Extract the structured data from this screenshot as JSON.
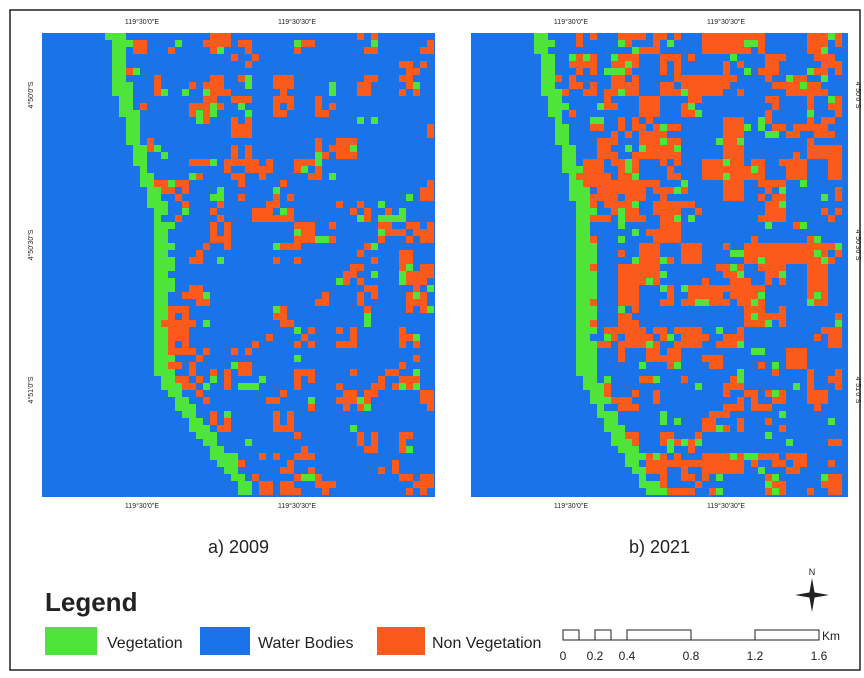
{
  "panels": [
    {
      "caption": "a) 2009",
      "top_labels": [
        "119°30'0\"E",
        "119°30'30\"E"
      ],
      "bottom_labels": [
        "119°30'0\"E",
        "119°30'30\"E"
      ],
      "side_labels": [
        "4°50'0\"S",
        "4°50'30\"S",
        "4°51'0\"S"
      ]
    },
    {
      "caption": "b) 2021",
      "top_labels": [
        "119°30'0\"E",
        "119°30'30\"E"
      ],
      "bottom_labels": [
        "119°30'0\"E",
        "119°30'30\"E"
      ],
      "side_labels": [
        "4°50'0\"S",
        "4°50'30\"S",
        "4°51'0\"S"
      ]
    }
  ],
  "legend": {
    "title": "Legend",
    "items": [
      "Vegetation",
      "Water Bodies",
      "Non Vegetation"
    ]
  },
  "scale_bar": {
    "labels": [
      "0",
      "0.2",
      "0.4",
      "0.8",
      "1.2",
      "1.6"
    ],
    "unit": "Km"
  },
  "north": "N"
}
